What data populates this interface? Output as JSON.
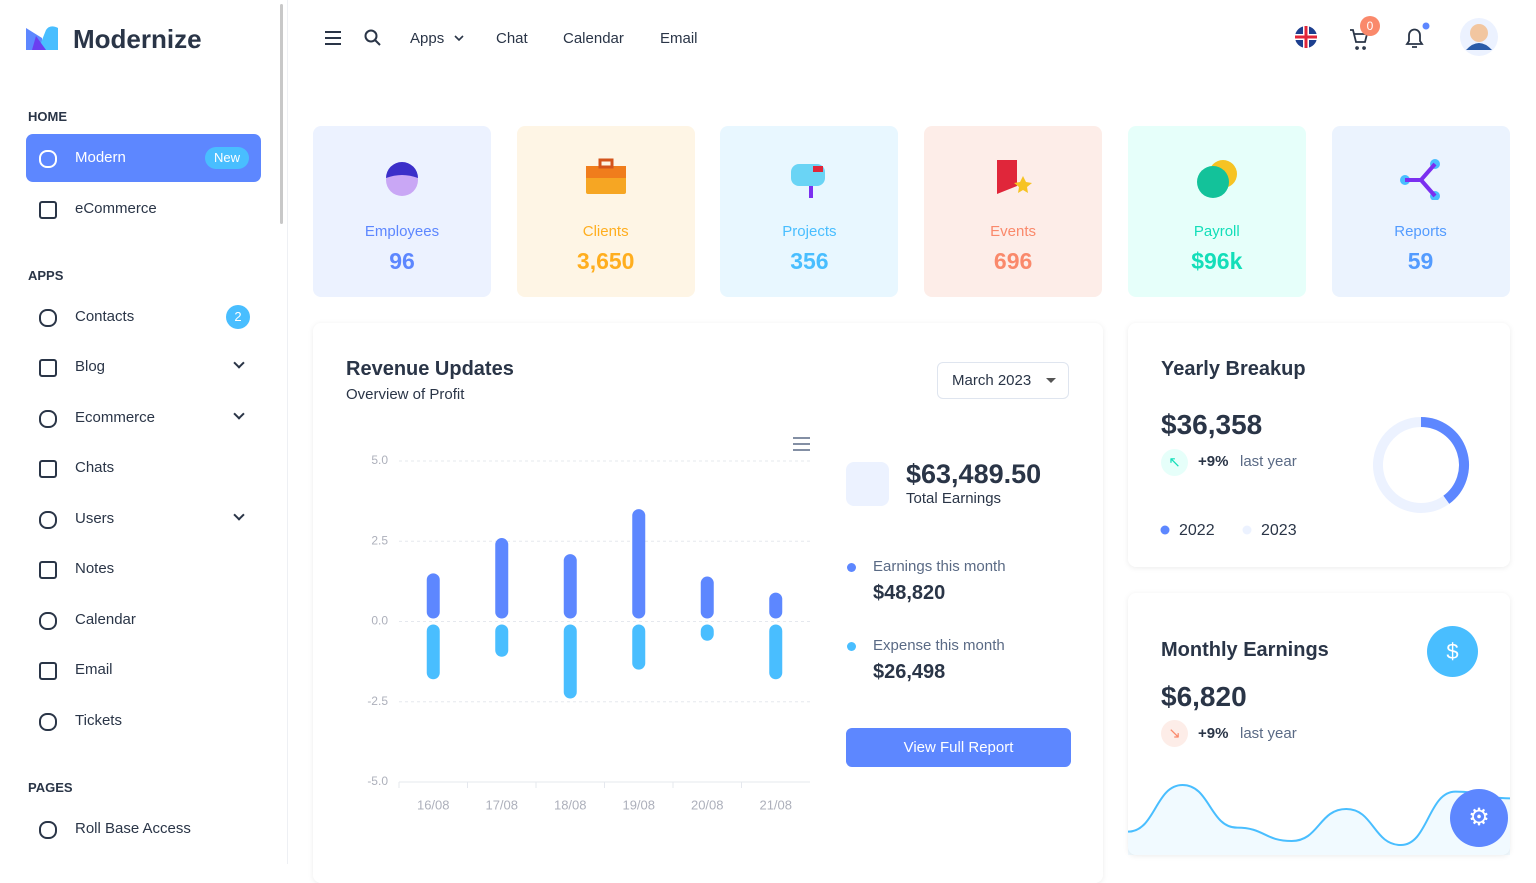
{
  "brand": "Modernize",
  "sidebar": [
    {
      "title": "HOME",
      "items": [
        {
          "label": "Modern",
          "badge": "New",
          "active": true
        },
        {
          "label": "eCommerce"
        }
      ]
    },
    {
      "title": "APPS",
      "items": [
        {
          "label": "Contacts",
          "badge": "2"
        },
        {
          "label": "Blog",
          "submenu": true
        },
        {
          "label": "Ecommerce",
          "submenu": true
        },
        {
          "label": "Chats"
        },
        {
          "label": "Users",
          "submenu": true
        },
        {
          "label": "Notes"
        },
        {
          "label": "Calendar"
        },
        {
          "label": "Email"
        },
        {
          "label": "Tickets"
        }
      ]
    },
    {
      "title": "PAGES",
      "items": [
        {
          "label": "Roll Base Access"
        }
      ]
    }
  ],
  "topnav": {
    "links": [
      "Apps",
      "Chat",
      "Calendar",
      "Email"
    ],
    "cart_count": "0"
  },
  "stats": [
    {
      "label": "Employees",
      "value": "96",
      "color": "#5d87ff",
      "background": "#ecf2ff"
    },
    {
      "label": "Clients",
      "value": "3,650",
      "color": "#ffae1f",
      "background": "#fef5e5"
    },
    {
      "label": "Projects",
      "value": "356",
      "color": "#49beff",
      "background": "#e8f7ff"
    },
    {
      "label": "Events",
      "value": "696",
      "color": "#fa896b",
      "background": "#fdede8"
    },
    {
      "label": "Payroll",
      "value": "$96k",
      "color": "#13deb9",
      "background": "#e6fffa"
    },
    {
      "label": "Reports",
      "value": "59",
      "color": "#539bff",
      "background": "#ebf3fe"
    }
  ],
  "revenue": {
    "title": "Revenue Updates",
    "subtitle": "Overview of Profit",
    "period": "March 2023",
    "total": "$63,489.50",
    "total_label": "Total Earnings",
    "earnings_label": "Earnings this month",
    "earnings": "$48,820",
    "expense_label": "Expense this month",
    "expense": "$26,498",
    "button": "View Full Report"
  },
  "yearly": {
    "title": "Yearly Breakup",
    "amount": "$36,358",
    "change": "+9%",
    "change_label": "last year"
  },
  "monthly": {
    "title": "Monthly Earnings",
    "amount": "$6,820",
    "change": "+9%",
    "change_label": "last year"
  },
  "chart_data": [
    {
      "type": "bar",
      "categories": [
        "16/08",
        "17/08",
        "18/08",
        "19/08",
        "20/08",
        "21/08"
      ],
      "series": [
        {
          "color": "#5d87ff",
          "values": [
            1.5,
            2.6,
            2.1,
            3.5,
            1.4,
            0.9
          ]
        },
        {
          "color": "#49beff",
          "values": [
            -1.8,
            -1.1,
            -2.4,
            -1.5,
            -0.6,
            -1.8
          ]
        }
      ],
      "ylim": [
        -5,
        5
      ],
      "yticks": [
        {
          "value": -5,
          "label": "-5.0"
        },
        -2.5,
        {
          "value": 0,
          "label": "0.0"
        },
        2.5,
        {
          "value": 5,
          "label": "5.0"
        }
      ],
      "grid": true
    },
    {
      "type": "pie",
      "categories": [
        "2022",
        "2023"
      ],
      "values": [
        40,
        60
      ],
      "colors": [
        "#5d87ff",
        "#ecf2ff"
      ]
    },
    {
      "type": "area",
      "values": [
        25,
        60,
        28,
        18,
        42,
        15,
        55,
        50
      ],
      "color": "#49beff"
    }
  ]
}
